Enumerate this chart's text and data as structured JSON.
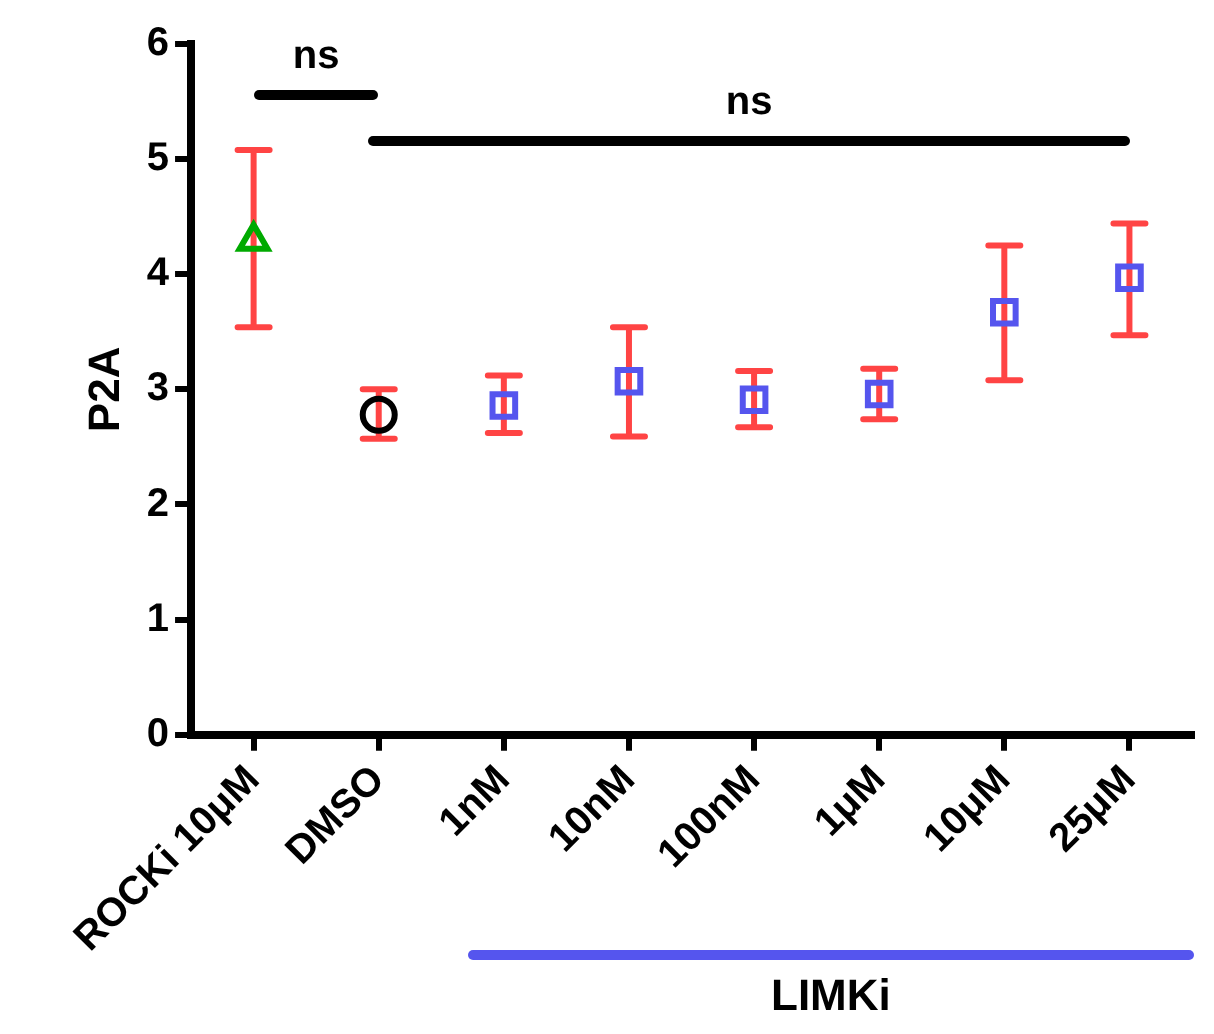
{
  "chart_data": {
    "type": "scatter",
    "ylabel": "P2A",
    "categories": [
      "ROCKi 10μM",
      "DMSO",
      "1nM",
      "10nM",
      "100nM",
      "1μM",
      "10μM",
      "25μM"
    ],
    "ylim": [
      0,
      6
    ],
    "yticks": [
      0,
      1,
      2,
      3,
      4,
      5,
      6
    ],
    "grid": false,
    "legend": false,
    "annotations": [
      "ns",
      "ns",
      "LIMKi"
    ],
    "series": [
      {
        "marker": "triangle",
        "color": "#00aa00",
        "values": [
          4.29,
          null,
          null,
          null,
          null,
          null,
          null,
          null
        ],
        "errors": [
          [
            3.54,
            5.08
          ],
          null,
          null,
          null,
          null,
          null,
          null,
          null
        ]
      },
      {
        "marker": "circle",
        "color": "#000000",
        "values": [
          null,
          2.78,
          null,
          null,
          null,
          null,
          null,
          null
        ],
        "errors": [
          null,
          [
            2.57,
            3.0
          ],
          null,
          null,
          null,
          null,
          null,
          null
        ]
      },
      {
        "marker": "square",
        "color": "#5555ee",
        "values": [
          null,
          null,
          2.86,
          3.07,
          2.91,
          2.96,
          3.67,
          3.97
        ],
        "errors": [
          null,
          null,
          [
            2.62,
            3.12
          ],
          [
            2.59,
            3.54
          ],
          [
            2.67,
            3.16
          ],
          [
            2.74,
            3.18
          ],
          [
            3.08,
            4.25
          ],
          [
            3.47,
            4.44
          ]
        ]
      }
    ]
  }
}
